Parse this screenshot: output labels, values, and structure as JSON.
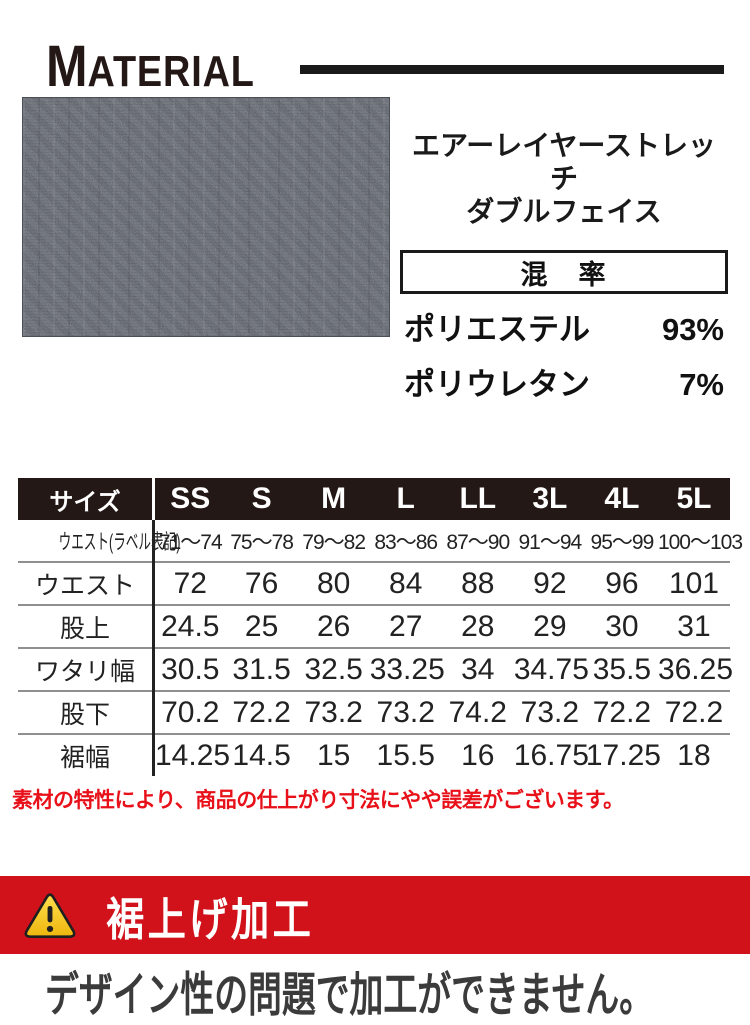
{
  "header": {
    "initial": "M",
    "rest": "ATERIAL"
  },
  "material": {
    "name_line1": "エアーレイヤーストレッチ",
    "name_line2": "ダブルフェイス",
    "mix_title": "混　率",
    "composition": [
      {
        "name": "ポリエステル",
        "pct": "93%"
      },
      {
        "name": "ポリウレタン",
        "pct": "7%"
      }
    ]
  },
  "size_table": {
    "corner_label": "サイズ",
    "columns": [
      "SS",
      "S",
      "M",
      "L",
      "LL",
      "3L",
      "4L",
      "5L"
    ],
    "rows": [
      {
        "label": "ウエスト(ラベル表記)",
        "values": [
          "71〜74",
          "75〜78",
          "79〜82",
          "83〜86",
          "87〜90",
          "91〜94",
          "95〜99",
          "100〜103"
        ]
      },
      {
        "label": "ウエスト",
        "values": [
          "72",
          "76",
          "80",
          "84",
          "88",
          "92",
          "96",
          "101"
        ]
      },
      {
        "label": "股上",
        "values": [
          "24.5",
          "25",
          "26",
          "27",
          "28",
          "29",
          "30",
          "31"
        ]
      },
      {
        "label": "ワタリ幅",
        "values": [
          "30.5",
          "31.5",
          "32.5",
          "33.25",
          "34",
          "34.75",
          "35.5",
          "36.25"
        ]
      },
      {
        "label": "股下",
        "values": [
          "70.2",
          "72.2",
          "73.2",
          "73.2",
          "74.2",
          "73.2",
          "72.2",
          "72.2"
        ]
      },
      {
        "label": "裾幅",
        "values": [
          "14.25",
          "14.5",
          "15",
          "15.5",
          "16",
          "16.75",
          "17.25",
          "18"
        ]
      }
    ]
  },
  "notice": "素材の特性により、商品の仕上がり寸法にやや誤差がございます。",
  "hem_banner": {
    "label": "裾上げ加工",
    "icon": "warning-triangle-icon"
  },
  "hem_message": "デザイン性の問題で加工ができません。",
  "colors": {
    "banner_red": "#d1121b",
    "notice_red": "#e8111a",
    "table_header_bg": "#231815",
    "text_dark": "#3b3b3b",
    "fabric_base": "#5d626c",
    "warning_yellow": "#f6c914",
    "line_black": "#1a1a1a"
  }
}
